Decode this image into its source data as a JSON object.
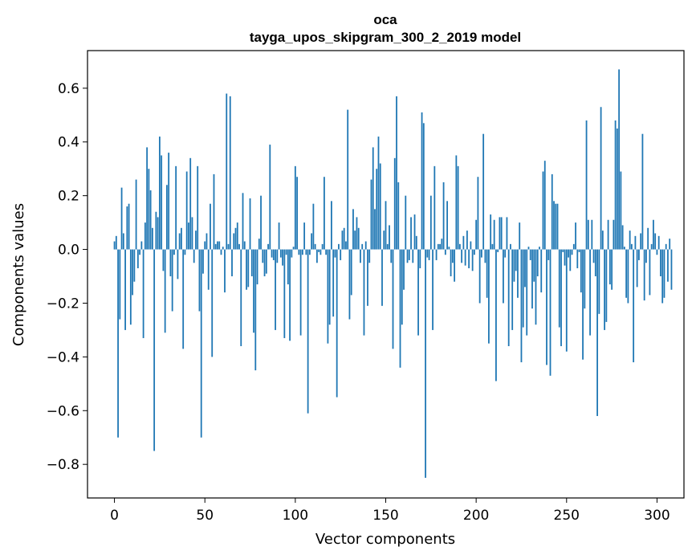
{
  "chart_data": {
    "type": "bar",
    "title_line1": "oca",
    "title_line2": "tayga_upos_skipgram_300_2_2019 model",
    "xlabel": "Vector components",
    "ylabel": "Components values",
    "xlim": [
      -14.9,
      314.9
    ],
    "ylim": [
      -0.925,
      0.74
    ],
    "xticks": [
      0,
      50,
      100,
      150,
      200,
      250,
      300
    ],
    "xtick_labels": [
      "0",
      "50",
      "100",
      "150",
      "200",
      "250",
      "300"
    ],
    "yticks": [
      -0.8,
      -0.6,
      -0.4,
      -0.2,
      0.0,
      0.2,
      0.4,
      0.6
    ],
    "ytick_labels": [
      "−0.8",
      "−0.6",
      "−0.4",
      "−0.2",
      "0.0",
      "0.2",
      "0.4",
      "0.6"
    ],
    "bar_color": "#1f77b4",
    "values": [
      0.03,
      0.05,
      -0.7,
      -0.26,
      0.23,
      0.06,
      -0.3,
      0.16,
      0.17,
      -0.28,
      -0.17,
      -0.12,
      0.26,
      -0.07,
      -0.02,
      0.03,
      -0.33,
      0.1,
      0.38,
      0.3,
      0.22,
      0.08,
      -0.75,
      0.14,
      0.12,
      0.42,
      0.35,
      -0.08,
      -0.31,
      0.24,
      0.36,
      -0.1,
      -0.23,
      -0.02,
      0.31,
      -0.11,
      0.06,
      0.08,
      -0.37,
      -0.02,
      0.29,
      0.1,
      0.34,
      0.12,
      -0.05,
      0.07,
      0.31,
      -0.23,
      -0.7,
      -0.09,
      0.03,
      0.06,
      -0.15,
      0.17,
      -0.4,
      0.28,
      0.02,
      0.03,
      0.03,
      -0.02,
      0.01,
      -0.16,
      0.58,
      0.02,
      0.57,
      -0.1,
      0.06,
      0.08,
      0.1,
      0.02,
      -0.36,
      0.21,
      0.03,
      -0.15,
      -0.14,
      0.19,
      -0.1,
      -0.31,
      -0.45,
      -0.13,
      0.04,
      0.2,
      -0.05,
      -0.1,
      -0.09,
      0.02,
      0.39,
      -0.03,
      -0.04,
      -0.3,
      -0.05,
      0.1,
      -0.03,
      -0.06,
      -0.33,
      -0.02,
      -0.13,
      -0.34,
      -0.03,
      0.01,
      0.31,
      0.27,
      -0.02,
      -0.32,
      -0.02,
      0.1,
      -0.02,
      -0.61,
      -0.02,
      0.06,
      0.17,
      0.02,
      -0.05,
      -0.01,
      -0.02,
      0.02,
      0.27,
      -0.02,
      -0.35,
      -0.28,
      0.18,
      -0.25,
      -0.03,
      -0.55,
      0.02,
      -0.04,
      0.07,
      0.08,
      0.03,
      0.52,
      -0.26,
      -0.17,
      0.15,
      0.07,
      0.12,
      0.08,
      -0.05,
      0.02,
      -0.32,
      0.03,
      -0.21,
      -0.05,
      0.26,
      0.38,
      0.15,
      0.3,
      0.42,
      0.32,
      -0.21,
      0.07,
      0.18,
      0.02,
      0.09,
      -0.05,
      -0.37,
      0.34,
      0.57,
      0.25,
      -0.44,
      -0.28,
      -0.15,
      0.2,
      -0.05,
      -0.04,
      0.12,
      -0.05,
      0.13,
      0.05,
      -0.32,
      -0.07,
      0.51,
      0.47,
      -0.85,
      -0.03,
      -0.04,
      0.2,
      -0.3,
      0.31,
      -0.04,
      0.02,
      0.02,
      0.04,
      0.25,
      -0.02,
      0.18,
      0.01,
      -0.1,
      -0.05,
      -0.12,
      0.35,
      0.31,
      0.02,
      -0.05,
      0.05,
      -0.06,
      0.07,
      -0.07,
      0.03,
      -0.08,
      -0.02,
      0.11,
      0.27,
      -0.2,
      -0.03,
      0.43,
      -0.05,
      -0.18,
      -0.35,
      0.13,
      0.02,
      0.11,
      -0.49,
      -0.01,
      0.12,
      0.12,
      -0.2,
      -0.03,
      0.12,
      -0.36,
      0.02,
      -0.3,
      -0.12,
      -0.08,
      -0.18,
      0.1,
      -0.42,
      -0.29,
      -0.14,
      -0.32,
      0.01,
      -0.04,
      -0.22,
      -0.12,
      -0.28,
      -0.1,
      0.01,
      -0.16,
      0.29,
      0.33,
      -0.43,
      -0.04,
      -0.47,
      0.28,
      0.18,
      0.17,
      0.17,
      -0.29,
      -0.36,
      -0.01,
      -0.06,
      -0.38,
      -0.03,
      -0.08,
      -0.02,
      0.02,
      0.1,
      -0.07,
      -0.01,
      -0.16,
      -0.41,
      -0.22,
      0.48,
      0.11,
      -0.32,
      0.11,
      -0.05,
      -0.1,
      -0.62,
      -0.24,
      0.53,
      0.07,
      -0.3,
      -0.27,
      0.11,
      -0.13,
      -0.15,
      0.11,
      0.48,
      0.45,
      0.67,
      0.29,
      0.09,
      0.01,
      -0.18,
      -0.2,
      0.07,
      0.02,
      -0.42,
      0.05,
      -0.14,
      -0.04,
      0.06,
      0.43,
      -0.19,
      -0.05,
      0.08,
      -0.17,
      0.02,
      0.11,
      0.06,
      -0.02,
      0.05,
      -0.1,
      -0.2,
      -0.18,
      0.02,
      -0.12,
      0.04,
      -0.15
    ]
  }
}
